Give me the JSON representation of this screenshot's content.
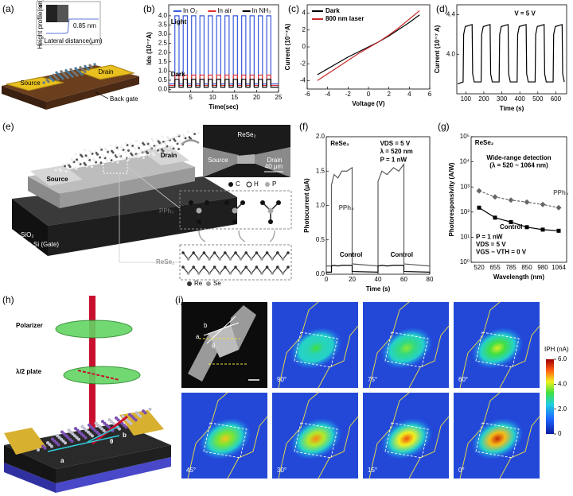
{
  "panel_labels": [
    "(a)",
    "(b)",
    "(c)",
    "(d)",
    "(e)",
    "(f)",
    "(g)",
    "(h)",
    "(i)"
  ],
  "panel_a": {
    "inset_tag": "e",
    "inset_x_label": "Lateral distance(μm)",
    "inset_y_label": "Height profile(nm)",
    "step": "0.85 nm",
    "source": "Source",
    "drain": "Drain",
    "back_gate": "Back gate"
  },
  "panel_e": {
    "source": "Source",
    "drain": "Drain",
    "oxide": "SiO₂",
    "gate": "P⁺⁺ Si (Gate)",
    "sem_material": "ReSe₂",
    "sem_source": "Source",
    "sem_drain": "Drain",
    "scale_bar": "40 μm",
    "atoms_top": [
      "C",
      "H",
      "P"
    ],
    "ligand": "PPh₃",
    "crystal": "ReSe₂",
    "atoms_bottom": [
      "Re",
      "Se"
    ]
  },
  "panel_h": {
    "polarizer": "Polarizer",
    "waveplate": "λ/2 plate",
    "axis_a": "a",
    "axis_b": "b",
    "angle": "θ"
  },
  "panel_i": {
    "sem_b": "b",
    "sem_a": "a",
    "sem_angle": "θ",
    "angles": [
      "90°",
      "75°",
      "60°",
      "45°",
      "30°",
      "15°",
      "0°"
    ],
    "colorbar": {
      "label": "IPH (nA)",
      "lim": [
        0,
        6
      ],
      "ticks": [
        0,
        {
          "value": 2,
          "label": "2.0"
        },
        {
          "value": 4,
          "label": "4.0"
        },
        {
          "value": 6,
          "label": "6.0"
        }
      ]
    }
  },
  "chart_data": [
    {
      "type": "line",
      "x_label": "Time(sec)",
      "y_label": "Ids (10⁻⁷A)",
      "xlim": [
        0,
        25
      ],
      "xticks": [
        5,
        10,
        15,
        20,
        25
      ],
      "ylim": [
        -0.15,
        4.6
      ],
      "yticks": [
        {
          "value": 0,
          "label": "0.0"
        },
        {
          "value": 0.5,
          "label": "0.5"
        },
        {
          "value": 1,
          "label": "1.0"
        },
        {
          "value": 1.5,
          "label": "1.5"
        },
        {
          "value": 2,
          "label": "2.0"
        },
        {
          "value": 2.5,
          "label": "2.5"
        },
        {
          "value": 3,
          "label": "3.0"
        },
        {
          "value": 3.5,
          "label": "3.5"
        },
        {
          "value": 4,
          "label": "4.0"
        }
      ],
      "legend": "top",
      "annotations": [
        "Light",
        "Dark"
      ],
      "x": [
        0,
        1.4,
        1.4,
        2.35,
        2.35,
        3.3,
        3.3,
        4.25,
        4.25,
        5.2,
        5.2,
        6.15,
        6.15,
        7.1,
        7.1,
        8.05,
        8.05,
        9.0,
        9.0,
        9.95,
        9.95,
        10.9,
        10.9,
        11.85,
        11.85,
        12.8,
        12.8,
        13.75,
        13.75,
        14.7,
        14.7,
        15.65,
        15.65,
        16.6,
        16.6,
        17.55,
        17.55,
        18.5,
        18.5,
        19.45,
        19.45,
        20.4,
        20.4,
        21.35,
        21.35,
        22.3,
        22.3,
        23.25,
        23.25,
        25
      ],
      "series": [
        {
          "name": "In O₂",
          "color": "#3b5bdb",
          "values": [
            0.3,
            0.3,
            4,
            4,
            0.3,
            0.3,
            4,
            4,
            0.3,
            0.3,
            4,
            4,
            0.3,
            0.3,
            4,
            4,
            0.3,
            0.3,
            4,
            4,
            0.3,
            0.3,
            4,
            4,
            0.3,
            0.3,
            4,
            4,
            0.3,
            0.3,
            4,
            4,
            0.3,
            0.3,
            4,
            4,
            0.3,
            0.3,
            4,
            4,
            0.3,
            0.3,
            4,
            4,
            0.3,
            0.3,
            4,
            4,
            0.3,
            0.3
          ]
        },
        {
          "name": "In air",
          "color": "#e03131",
          "values": [
            0.22,
            0.22,
            0.78,
            0.78,
            0.22,
            0.22,
            0.78,
            0.78,
            0.22,
            0.22,
            0.78,
            0.78,
            0.22,
            0.22,
            0.78,
            0.78,
            0.22,
            0.22,
            0.78,
            0.78,
            0.22,
            0.22,
            0.78,
            0.78,
            0.22,
            0.22,
            0.78,
            0.78,
            0.22,
            0.22,
            0.78,
            0.78,
            0.22,
            0.22,
            0.78,
            0.78,
            0.22,
            0.22,
            0.78,
            0.78,
            0.22,
            0.22,
            0.78,
            0.78,
            0.22,
            0.22,
            0.78,
            0.78,
            0.22,
            0.22
          ]
        },
        {
          "name": "In NH₃",
          "color": "#000000",
          "values": [
            0.12,
            0.12,
            0.55,
            0.55,
            0.12,
            0.12,
            0.55,
            0.55,
            0.12,
            0.12,
            0.55,
            0.55,
            0.12,
            0.12,
            0.55,
            0.55,
            0.12,
            0.12,
            0.55,
            0.55,
            0.12,
            0.12,
            0.55,
            0.55,
            0.12,
            0.12,
            0.55,
            0.55,
            0.12,
            0.12,
            0.55,
            0.55,
            0.12,
            0.12,
            0.55,
            0.55,
            0.12,
            0.12,
            0.55,
            0.55,
            0.12,
            0.12,
            0.55,
            0.55,
            0.12,
            0.12,
            0.55,
            0.55,
            0.12,
            0.12
          ]
        }
      ]
    },
    {
      "type": "line",
      "x_label": "Voltage (V)",
      "y_label": "Current (10⁻⁷A)",
      "xlim": [
        -6,
        6
      ],
      "xticks": [
        -6,
        -4,
        -2,
        0,
        2,
        4,
        6
      ],
      "ylim": [
        -5,
        5
      ],
      "yticks": [
        -4,
        -2,
        0,
        2,
        4
      ],
      "legend": "upper left",
      "x": [
        -5,
        -4,
        -3,
        -2,
        -1,
        0,
        1,
        2,
        3,
        4,
        5
      ],
      "series": [
        {
          "name": "Dark",
          "color": "#000000",
          "values": [
            -3.3,
            -2.6,
            -1.9,
            -1.2,
            -0.6,
            0,
            0.6,
            1.3,
            2.1,
            2.9,
            3.8
          ]
        },
        {
          "name": "800 nm laser",
          "color": "#c92a2a",
          "values": [
            -4.0,
            -3.2,
            -2.4,
            -1.6,
            -0.8,
            -0.1,
            0.6,
            1.4,
            2.3,
            3.3,
            4.3
          ]
        }
      ]
    },
    {
      "type": "line",
      "x_label": "Time (s)",
      "y_label": "Current (10⁻⁷ A)",
      "xlim": [
        50,
        660
      ],
      "xticks": [
        100,
        200,
        300,
        400,
        500,
        600
      ],
      "ylim": [
        3.6,
        4.5
      ],
      "yticks": [
        {
          "value": 4,
          "label": "4.0"
        },
        {
          "value": 4.4,
          "label": "4.4"
        }
      ],
      "annotations": [
        "V = 5 V"
      ],
      "x": [
        55,
        85,
        88,
        97,
        135,
        138,
        147,
        185,
        188,
        197,
        235,
        238,
        247,
        285,
        288,
        297,
        335,
        338,
        347,
        385,
        388,
        397,
        435,
        438,
        447,
        485,
        488,
        497,
        535,
        538,
        547,
        585,
        588,
        597,
        635,
        638,
        647
      ],
      "series": [
        {
          "color": "#000000",
          "values": [
            3.7,
            3.72,
            4.2,
            4.28,
            4.3,
            3.8,
            3.72,
            3.72,
            4.2,
            4.28,
            4.3,
            3.8,
            3.72,
            3.72,
            4.2,
            4.28,
            4.3,
            3.8,
            3.72,
            3.72,
            4.2,
            4.28,
            4.3,
            3.8,
            3.72,
            3.72,
            4.2,
            4.28,
            4.3,
            3.8,
            3.72,
            3.72,
            4.2,
            4.28,
            4.3,
            3.8,
            3.72
          ]
        }
      ]
    },
    {
      "type": "line",
      "x_label": "Time (s)",
      "y_label": "Photocurrent (μA)",
      "xlim": [
        0,
        80
      ],
      "xticks": [
        0,
        20,
        40,
        60,
        80
      ],
      "ylim": [
        0,
        2
      ],
      "yticks": [
        {
          "value": 0,
          "label": "0.0"
        },
        {
          "value": 0.5,
          "label": "0.5"
        },
        {
          "value": 1,
          "label": "1.0"
        },
        {
          "value": 1.5,
          "label": "1.5"
        },
        {
          "value": 2,
          "label": "2.0"
        }
      ],
      "annotations": [
        "ReSe₂",
        "VDS = 5 V",
        "λ = 520 nm",
        "P = 1 nW"
      ],
      "x": [
        0,
        4,
        4,
        6,
        9,
        12,
        16,
        20,
        20,
        40,
        40,
        43,
        47,
        52,
        56,
        60,
        60,
        80
      ],
      "series": [
        {
          "name": "PPh₃",
          "color": "#5c5c5c",
          "values": [
            0.12,
            0.12,
            1.3,
            1.45,
            1.4,
            1.5,
            1.5,
            1.55,
            0.15,
            0.12,
            1.35,
            1.5,
            1.45,
            1.55,
            1.5,
            1.6,
            0.15,
            0.12
          ]
        },
        {
          "name": "Control",
          "color": "#000000",
          "values": [
            0.03,
            0.03,
            0.12,
            0.13,
            0.12,
            0.13,
            0.13,
            0.13,
            0.04,
            0.03,
            0.12,
            0.13,
            0.12,
            0.13,
            0.13,
            0.13,
            0.04,
            0.03
          ]
        }
      ]
    },
    {
      "type": "line",
      "x_label": "Wavelength (nm)",
      "y_label": "Photoresponsivity (A/W)",
      "log_y": true,
      "categories": [
        "520",
        "655",
        "785",
        "850",
        "980",
        "1064"
      ],
      "ylim": [
        1,
        100000
      ],
      "yticks": [
        {
          "value": 1,
          "label": "10⁰"
        },
        {
          "value": 10,
          "label": "10¹"
        },
        {
          "value": 100,
          "label": "10²"
        },
        {
          "value": 1000,
          "label": "10³"
        },
        {
          "value": 10000,
          "label": "10⁴"
        },
        {
          "value": 100000,
          "label": "10⁵"
        }
      ],
      "annotations": [
        "ReSe₂",
        "Wide-range detection",
        "(λ = 520 ~ 1064 nm)",
        "P = 1 nW",
        "VDS = 5 V",
        "VGS − VTH = 0 V"
      ],
      "series": [
        {
          "name": "PPh₃",
          "color": "#666666",
          "dashed": true,
          "marker": "diamond",
          "values": [
            700,
            400,
            300,
            250,
            200,
            150
          ]
        },
        {
          "name": "Control",
          "color": "#000000",
          "marker": "square",
          "values": [
            150,
            60,
            40,
            25,
            20,
            18
          ]
        }
      ]
    }
  ]
}
